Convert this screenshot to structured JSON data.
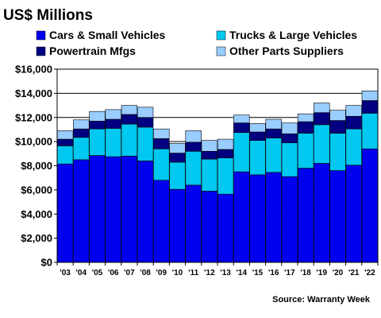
{
  "chart_data": {
    "type": "bar",
    "stacked": true,
    "title": "US$ Millions",
    "source": "Source: Warranty Week",
    "categories": [
      "'03",
      "'04",
      "'05",
      "'06",
      "'07",
      "'08",
      "'09",
      "'10",
      "'11",
      "'12",
      "'13",
      "'14",
      "'15",
      "'16",
      "'17",
      "'18",
      "'19",
      "'20",
      "'21",
      "'22"
    ],
    "series": [
      {
        "name": "Cars & Small Vehicles",
        "color": "#0000ee",
        "values": [
          8150,
          8500,
          8850,
          8750,
          8800,
          8400,
          6800,
          6050,
          6400,
          5900,
          5650,
          7500,
          7250,
          7450,
          7100,
          7800,
          8200,
          7600,
          8050,
          9400
        ]
      },
      {
        "name": "Trucks & Large Vehicles",
        "color": "#00c8f0",
        "values": [
          1500,
          1850,
          2200,
          2350,
          2650,
          2800,
          2600,
          2250,
          2800,
          2650,
          3000,
          3250,
          2850,
          2850,
          2800,
          2900,
          3200,
          3100,
          3000,
          2950
        ]
      },
      {
        "name": "Powertrain Mfgs",
        "color": "#000080",
        "values": [
          550,
          700,
          650,
          750,
          800,
          800,
          850,
          750,
          750,
          650,
          700,
          800,
          700,
          750,
          750,
          950,
          1000,
          1050,
          1050,
          1050
        ]
      },
      {
        "name": "Other Parts Suppliers",
        "color": "#99ccff",
        "values": [
          700,
          750,
          800,
          800,
          750,
          850,
          800,
          800,
          950,
          900,
          850,
          650,
          700,
          800,
          900,
          650,
          800,
          850,
          900,
          800
        ]
      }
    ],
    "yticks": [
      "$0",
      "$2,000",
      "$4,000",
      "$6,000",
      "$8,000",
      "$10,000",
      "$12,000",
      "$14,000",
      "$16,000"
    ],
    "ylim": [
      0,
      16000
    ],
    "ytick_step": 2000,
    "grid": true,
    "legend_position": "top",
    "plot_background": "#ffffff"
  }
}
